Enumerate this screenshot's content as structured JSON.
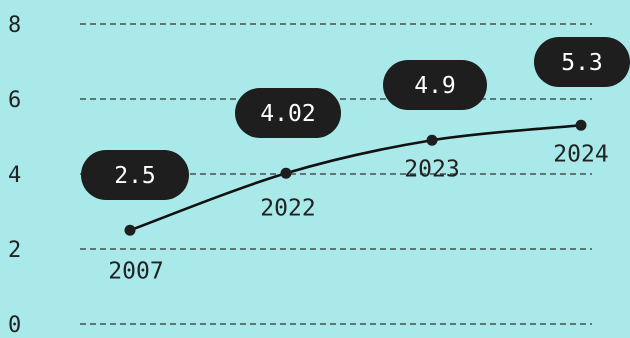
{
  "chart_data": {
    "type": "line",
    "title": "",
    "xlabel": "",
    "ylabel": "",
    "ylim": [
      0,
      8
    ],
    "yticks": [
      "0",
      "2",
      "4",
      "6",
      "8"
    ],
    "grid": true,
    "points": [
      {
        "x": "2007",
        "y": 2.5,
        "label": "2.5"
      },
      {
        "x": "2022",
        "y": 4.02,
        "label": "4.02"
      },
      {
        "x": "2023",
        "y": 4.9,
        "label": "4.9"
      },
      {
        "x": "2024",
        "y": 5.3,
        "label": "5.3"
      }
    ],
    "colors": {
      "background": "#a9e9ea",
      "line": "#111111",
      "marker": "#1e1e1e",
      "label_bg": "#1e1e1e",
      "label_text": "#ffffff",
      "grid": "#333333",
      "text": "#222222"
    }
  }
}
